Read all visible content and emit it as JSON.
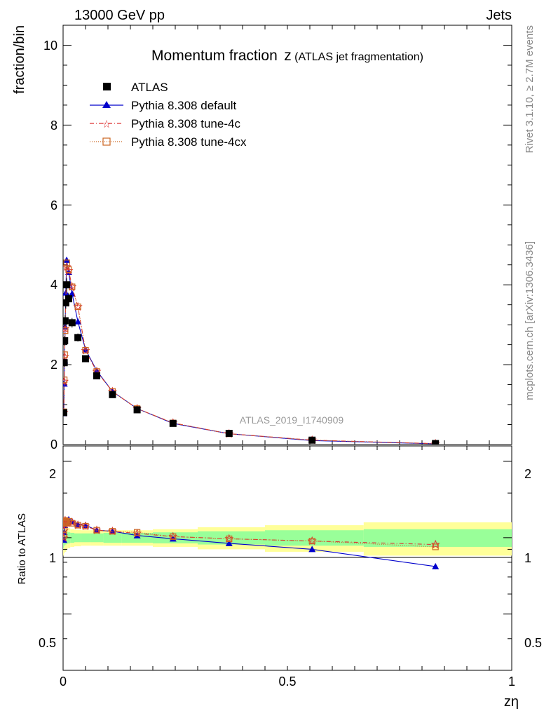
{
  "header": {
    "left": "13000 GeV pp",
    "right": "Jets"
  },
  "side_text": {
    "rivet": "Rivet 3.1.10, ≥ 2.7M events",
    "mcplots": "mcplots.cern.ch [arXiv:1306.3436]"
  },
  "watermark": "ATLAS_2019_I1740909",
  "chart_data": {
    "type": "scatter",
    "title": "Momentum fraction",
    "title_symbol": "z",
    "title_suffix": "(ATLAS jet fragmentation)",
    "xlabel": "zη",
    "ylabel": "fraction/bin",
    "ratio_ylabel": "Ratio to ATLAS",
    "xlim": [
      0,
      1
    ],
    "ylim": [
      0,
      10.5
    ],
    "ratio_ylim": [
      0.3,
      2.3
    ],
    "x_ticks": [
      "0",
      "0.5",
      "1"
    ],
    "y_ticks": [
      "0",
      "2",
      "4",
      "6",
      "8",
      "10"
    ],
    "ratio_y_ticks": [
      "0.5",
      "1",
      "2"
    ],
    "legend": [
      "ATLAS",
      "Pythia 8.308 default",
      "Pythia 8.308 tune-4c",
      "Pythia 8.308 tune-4cx"
    ],
    "legend_position": "top-left",
    "colors": {
      "data": "#000000",
      "default": "#0000cc",
      "tune4c": "#dd3333",
      "tune4cx": "#cc6622",
      "band_inner": "#99ff99",
      "band_outer": "#ffff99"
    },
    "x": [
      0.0015,
      0.0025,
      0.0035,
      0.0045,
      0.006,
      0.008,
      0.0125,
      0.02,
      0.033,
      0.05,
      0.075,
      0.11,
      0.165,
      0.245,
      0.37,
      0.555,
      0.83
    ],
    "data": [
      0.8,
      2.05,
      2.6,
      3.1,
      3.55,
      4.0,
      3.65,
      3.05,
      2.68,
      2.15,
      1.72,
      1.25,
      0.87,
      0.53,
      0.28,
      0.11,
      0.025
    ],
    "data_errors": [
      0.05,
      0.1,
      0.12,
      0.14,
      0.15,
      0.17,
      0.15,
      0.12,
      0.1,
      0.08,
      0.06,
      0.05,
      0.04,
      0.03,
      0.02,
      0.01,
      0.004
    ],
    "series": [
      {
        "name": "Pythia 8.308 default",
        "values": [
          0.78,
          1.52,
          2.1,
          2.95,
          3.8,
          4.62,
          4.32,
          3.78,
          3.08,
          2.38,
          1.85,
          1.33,
          0.9,
          0.53,
          0.27,
          0.1,
          0.019
        ],
        "ratio": [
          0.98,
          1.05,
          1.12,
          1.15,
          1.15,
          1.16,
          1.18,
          1.16,
          1.13,
          1.12,
          1.07,
          1.06,
          1.02,
          0.99,
          0.95,
          0.9,
          0.77
        ],
        "ratio_err": [
          0,
          0,
          0,
          0,
          0,
          0,
          0,
          0,
          0,
          0,
          0,
          0,
          0,
          0,
          0,
          0,
          0.02
        ]
      },
      {
        "name": "Pythia 8.308 tune-4c",
        "values": [
          0.8,
          1.58,
          2.2,
          2.9,
          3.55,
          4.45,
          4.35,
          3.95,
          3.45,
          2.35,
          1.83,
          1.33,
          0.9,
          0.54,
          0.27,
          0.11,
          0.023
        ],
        "ratio": [
          1.0,
          1.07,
          1.13,
          1.17,
          1.15,
          1.14,
          1.15,
          1.15,
          1.12,
          1.11,
          1.07,
          1.06,
          1.04,
          1.01,
          0.99,
          0.97,
          0.94
        ],
        "ratio_err": [
          0,
          0,
          0,
          0,
          0,
          0,
          0,
          0,
          0,
          0,
          0,
          0,
          0,
          0,
          0,
          0,
          0
        ]
      },
      {
        "name": "Pythia 8.308 tune-4cx",
        "values": [
          0.82,
          1.62,
          2.25,
          2.85,
          3.55,
          4.55,
          4.38,
          3.95,
          3.45,
          2.36,
          1.83,
          1.33,
          0.9,
          0.54,
          0.27,
          0.11,
          0.022
        ],
        "ratio": [
          1.02,
          1.09,
          1.14,
          1.17,
          1.16,
          1.15,
          1.16,
          1.14,
          1.12,
          1.11,
          1.07,
          1.06,
          1.05,
          1.01,
          0.99,
          0.97,
          0.92
        ],
        "ratio_err": [
          0,
          0,
          0,
          0,
          0,
          0,
          0,
          0,
          0,
          0,
          0,
          0,
          0,
          0,
          0,
          0,
          0
        ]
      }
    ],
    "band_bins": [
      [
        0.0,
        0.002,
        0.09,
        0.15
      ],
      [
        0.002,
        0.004,
        0.07,
        0.13
      ],
      [
        0.004,
        0.007,
        0.06,
        0.12
      ],
      [
        0.007,
        0.01,
        0.055,
        0.1
      ],
      [
        0.01,
        0.016,
        0.05,
        0.09
      ],
      [
        0.016,
        0.025,
        0.045,
        0.08
      ],
      [
        0.025,
        0.04,
        0.04,
        0.075
      ],
      [
        0.04,
        0.06,
        0.04,
        0.07
      ],
      [
        0.06,
        0.09,
        0.04,
        0.07
      ],
      [
        0.09,
        0.13,
        0.045,
        0.07
      ],
      [
        0.13,
        0.2,
        0.045,
        0.07
      ],
      [
        0.2,
        0.3,
        0.05,
        0.08
      ],
      [
        0.3,
        0.45,
        0.06,
        0.1
      ],
      [
        0.45,
        0.67,
        0.07,
        0.12
      ],
      [
        0.67,
        1.0,
        0.08,
        0.15
      ]
    ]
  }
}
